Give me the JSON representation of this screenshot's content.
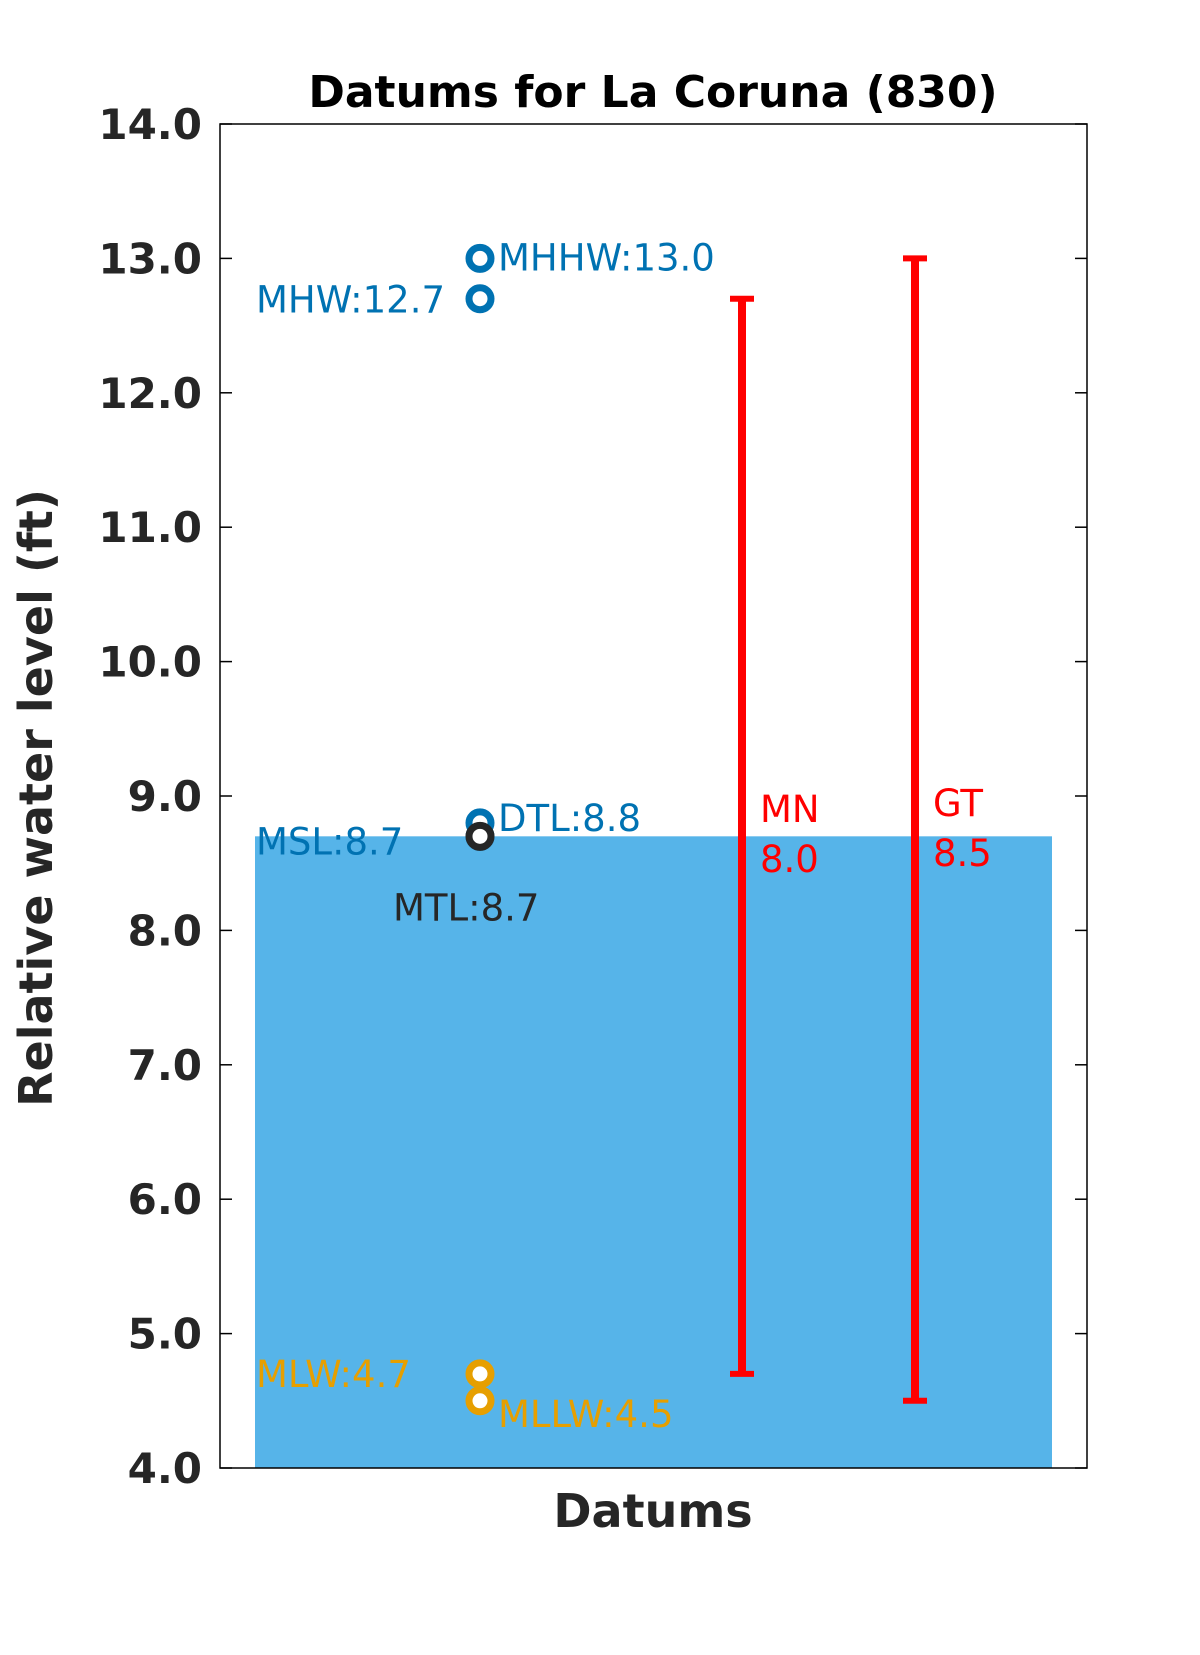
{
  "chart_data": {
    "type": "bar",
    "title": "Datums for La Coruna (830)",
    "xlabel": "Datums",
    "ylabel": "Relative water level (ft)",
    "ylim": [
      4.0,
      14.0
    ],
    "yticks": [
      "4.0",
      "5.0",
      "6.0",
      "7.0",
      "8.0",
      "9.0",
      "10.0",
      "11.0",
      "12.0",
      "13.0",
      "14.0"
    ],
    "grid": false,
    "bar": {
      "name": "MSL",
      "value": 8.7,
      "color": "#56b4e9"
    },
    "points": [
      {
        "name": "MHHW",
        "value": 13.0,
        "label": "MHHW:13.0",
        "color": "#0072b2"
      },
      {
        "name": "MHW",
        "value": 12.7,
        "label": "MHW:12.7",
        "color": "#0072b2"
      },
      {
        "name": "MSL",
        "value": 8.7,
        "label": "MSL:8.7",
        "color": "#0072b2"
      },
      {
        "name": "DTL",
        "value": 8.8,
        "label": "DTL:8.8",
        "color": "#0072b2"
      },
      {
        "name": "MTL",
        "value": 8.7,
        "label": "MTL:8.7",
        "color": "#262626"
      },
      {
        "name": "MLW",
        "value": 4.7,
        "label": "MLW:4.7",
        "color": "#e69f00"
      },
      {
        "name": "MLLW",
        "value": 4.5,
        "label": "MLLW:4.5",
        "color": "#e69f00"
      }
    ],
    "ranges": [
      {
        "name": "MN",
        "low": 4.7,
        "high": 12.7,
        "label_name": "MN",
        "label_value": "8.0",
        "color": "#ff0000"
      },
      {
        "name": "GT",
        "low": 4.5,
        "high": 13.0,
        "label_name": "GT",
        "label_value": "8.5",
        "color": "#ff0000"
      }
    ]
  }
}
